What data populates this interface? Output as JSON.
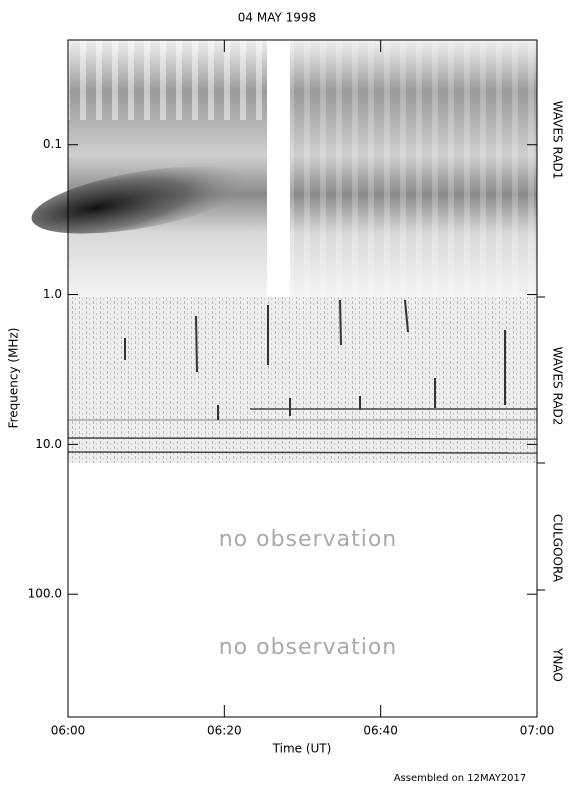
{
  "chart_data": {
    "type": "spectrogram",
    "title": "04 MAY 1998",
    "xlabel": "Time (UT)",
    "ylabel": "Frequency (MHz)",
    "xlim": [
      "06:00",
      "07:00"
    ],
    "xticks": [
      "06:00",
      "06:20",
      "06:40",
      "07:00"
    ],
    "ylim": [
      0.02,
      660
    ],
    "yscale": "log",
    "yinverted": true,
    "yticks": [
      0.1,
      {
        "value": 1,
        "label": "1.0"
      },
      {
        "value": 10,
        "label": "10.0"
      },
      {
        "value": 100,
        "label": "100.0"
      }
    ],
    "panels": [
      "WAVES RAD1",
      "WAVES RAD2",
      "CULGOORA",
      "YNAO"
    ],
    "annotations": [
      "no observation",
      "no observation"
    ],
    "footer": "Assembled on 12MAY2017"
  }
}
